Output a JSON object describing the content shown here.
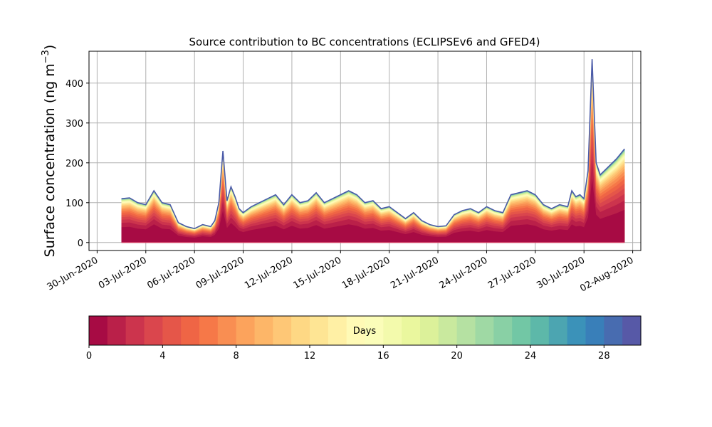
{
  "chart_data": {
    "type": "area",
    "title": "Source contribution to BC concentrations (ECLIPSEv6 and GFED4)",
    "ylabel": "Surface concentration (ng m",
    "ylabel_superscript": "−3",
    "ylabel_close": ")",
    "ylim": [
      -20,
      480
    ],
    "y_ticks": [
      0,
      100,
      200,
      300,
      400
    ],
    "xlim": [
      "2020-06-29T12:00",
      "2020-08-02T12:00"
    ],
    "x_ticks": [
      "30-Jun-2020",
      "03-Jul-2020",
      "06-Jul-2020",
      "09-Jul-2020",
      "12-Jul-2020",
      "15-Jul-2020",
      "18-Jul-2020",
      "21-Jul-2020",
      "24-Jul-2020",
      "27-Jul-2020",
      "30-Jul-2020",
      "02-Aug-2020"
    ],
    "grid": true,
    "colorbar": {
      "label": "Days",
      "ticks": [
        0,
        4,
        8,
        12,
        16,
        20,
        24,
        28
      ],
      "range": [
        0,
        30
      ],
      "colormap": "Spectral"
    },
    "total_series": {
      "name": "",
      "x": [
        "2020-07-01T12:00",
        "2020-07-02T00:00",
        "2020-07-02T12:00",
        "2020-07-03T00:00",
        "2020-07-03T12:00",
        "2020-07-04T00:00",
        "2020-07-04T12:00",
        "2020-07-05T00:00",
        "2020-07-05T12:00",
        "2020-07-06T00:00",
        "2020-07-06T12:00",
        "2020-07-07T00:00",
        "2020-07-07T06:00",
        "2020-07-07T12:00",
        "2020-07-07T18:00",
        "2020-07-08T00:00",
        "2020-07-08T06:00",
        "2020-07-08T12:00",
        "2020-07-08T18:00",
        "2020-07-09T00:00",
        "2020-07-09T12:00",
        "2020-07-10T00:00",
        "2020-07-10T12:00",
        "2020-07-11T00:00",
        "2020-07-11T12:00",
        "2020-07-12T00:00",
        "2020-07-12T12:00",
        "2020-07-13T00:00",
        "2020-07-13T12:00",
        "2020-07-14T00:00",
        "2020-07-14T12:00",
        "2020-07-15T00:00",
        "2020-07-15T12:00",
        "2020-07-16T00:00",
        "2020-07-16T12:00",
        "2020-07-17T00:00",
        "2020-07-17T12:00",
        "2020-07-18T00:00",
        "2020-07-18T12:00",
        "2020-07-19T00:00",
        "2020-07-19T12:00",
        "2020-07-20T00:00",
        "2020-07-20T12:00",
        "2020-07-21T00:00",
        "2020-07-21T12:00",
        "2020-07-22T00:00",
        "2020-07-22T12:00",
        "2020-07-23T00:00",
        "2020-07-23T12:00",
        "2020-07-24T00:00",
        "2020-07-24T12:00",
        "2020-07-25T00:00",
        "2020-07-25T12:00",
        "2020-07-26T00:00",
        "2020-07-26T12:00",
        "2020-07-27T00:00",
        "2020-07-27T12:00",
        "2020-07-28T00:00",
        "2020-07-28T12:00",
        "2020-07-29T00:00",
        "2020-07-29T06:00",
        "2020-07-29T12:00",
        "2020-07-29T18:00",
        "2020-07-30T00:00",
        "2020-07-30T06:00",
        "2020-07-30T12:00",
        "2020-07-30T18:00",
        "2020-07-31T00:00",
        "2020-07-31T12:00",
        "2020-08-01T00:00",
        "2020-08-01T12:00"
      ],
      "y": [
        110,
        112,
        100,
        95,
        130,
        100,
        95,
        50,
        40,
        35,
        45,
        40,
        55,
        100,
        230,
        105,
        140,
        115,
        85,
        75,
        90,
        100,
        110,
        120,
        95,
        120,
        100,
        105,
        125,
        100,
        110,
        120,
        130,
        120,
        100,
        105,
        85,
        90,
        75,
        60,
        75,
        55,
        45,
        40,
        42,
        70,
        80,
        85,
        75,
        90,
        80,
        75,
        120,
        125,
        130,
        120,
        95,
        85,
        95,
        90,
        130,
        115,
        120,
        110,
        180,
        460,
        200,
        170,
        190,
        210,
        235
      ]
    },
    "contribution_bands": {
      "count": 30,
      "cumulative_fraction_of_total": [
        0.35,
        0.45,
        0.52,
        0.58,
        0.63,
        0.68,
        0.72,
        0.76,
        0.79,
        0.82,
        0.845,
        0.865,
        0.885,
        0.9,
        0.915,
        0.927,
        0.938,
        0.948,
        0.957,
        0.965,
        0.972,
        0.978,
        0.983,
        0.987,
        0.99,
        0.993,
        0.995,
        0.997,
        0.999,
        1.0
      ]
    },
    "colors": {
      "grid": "#b0b0b0",
      "axes": "#000000"
    }
  }
}
